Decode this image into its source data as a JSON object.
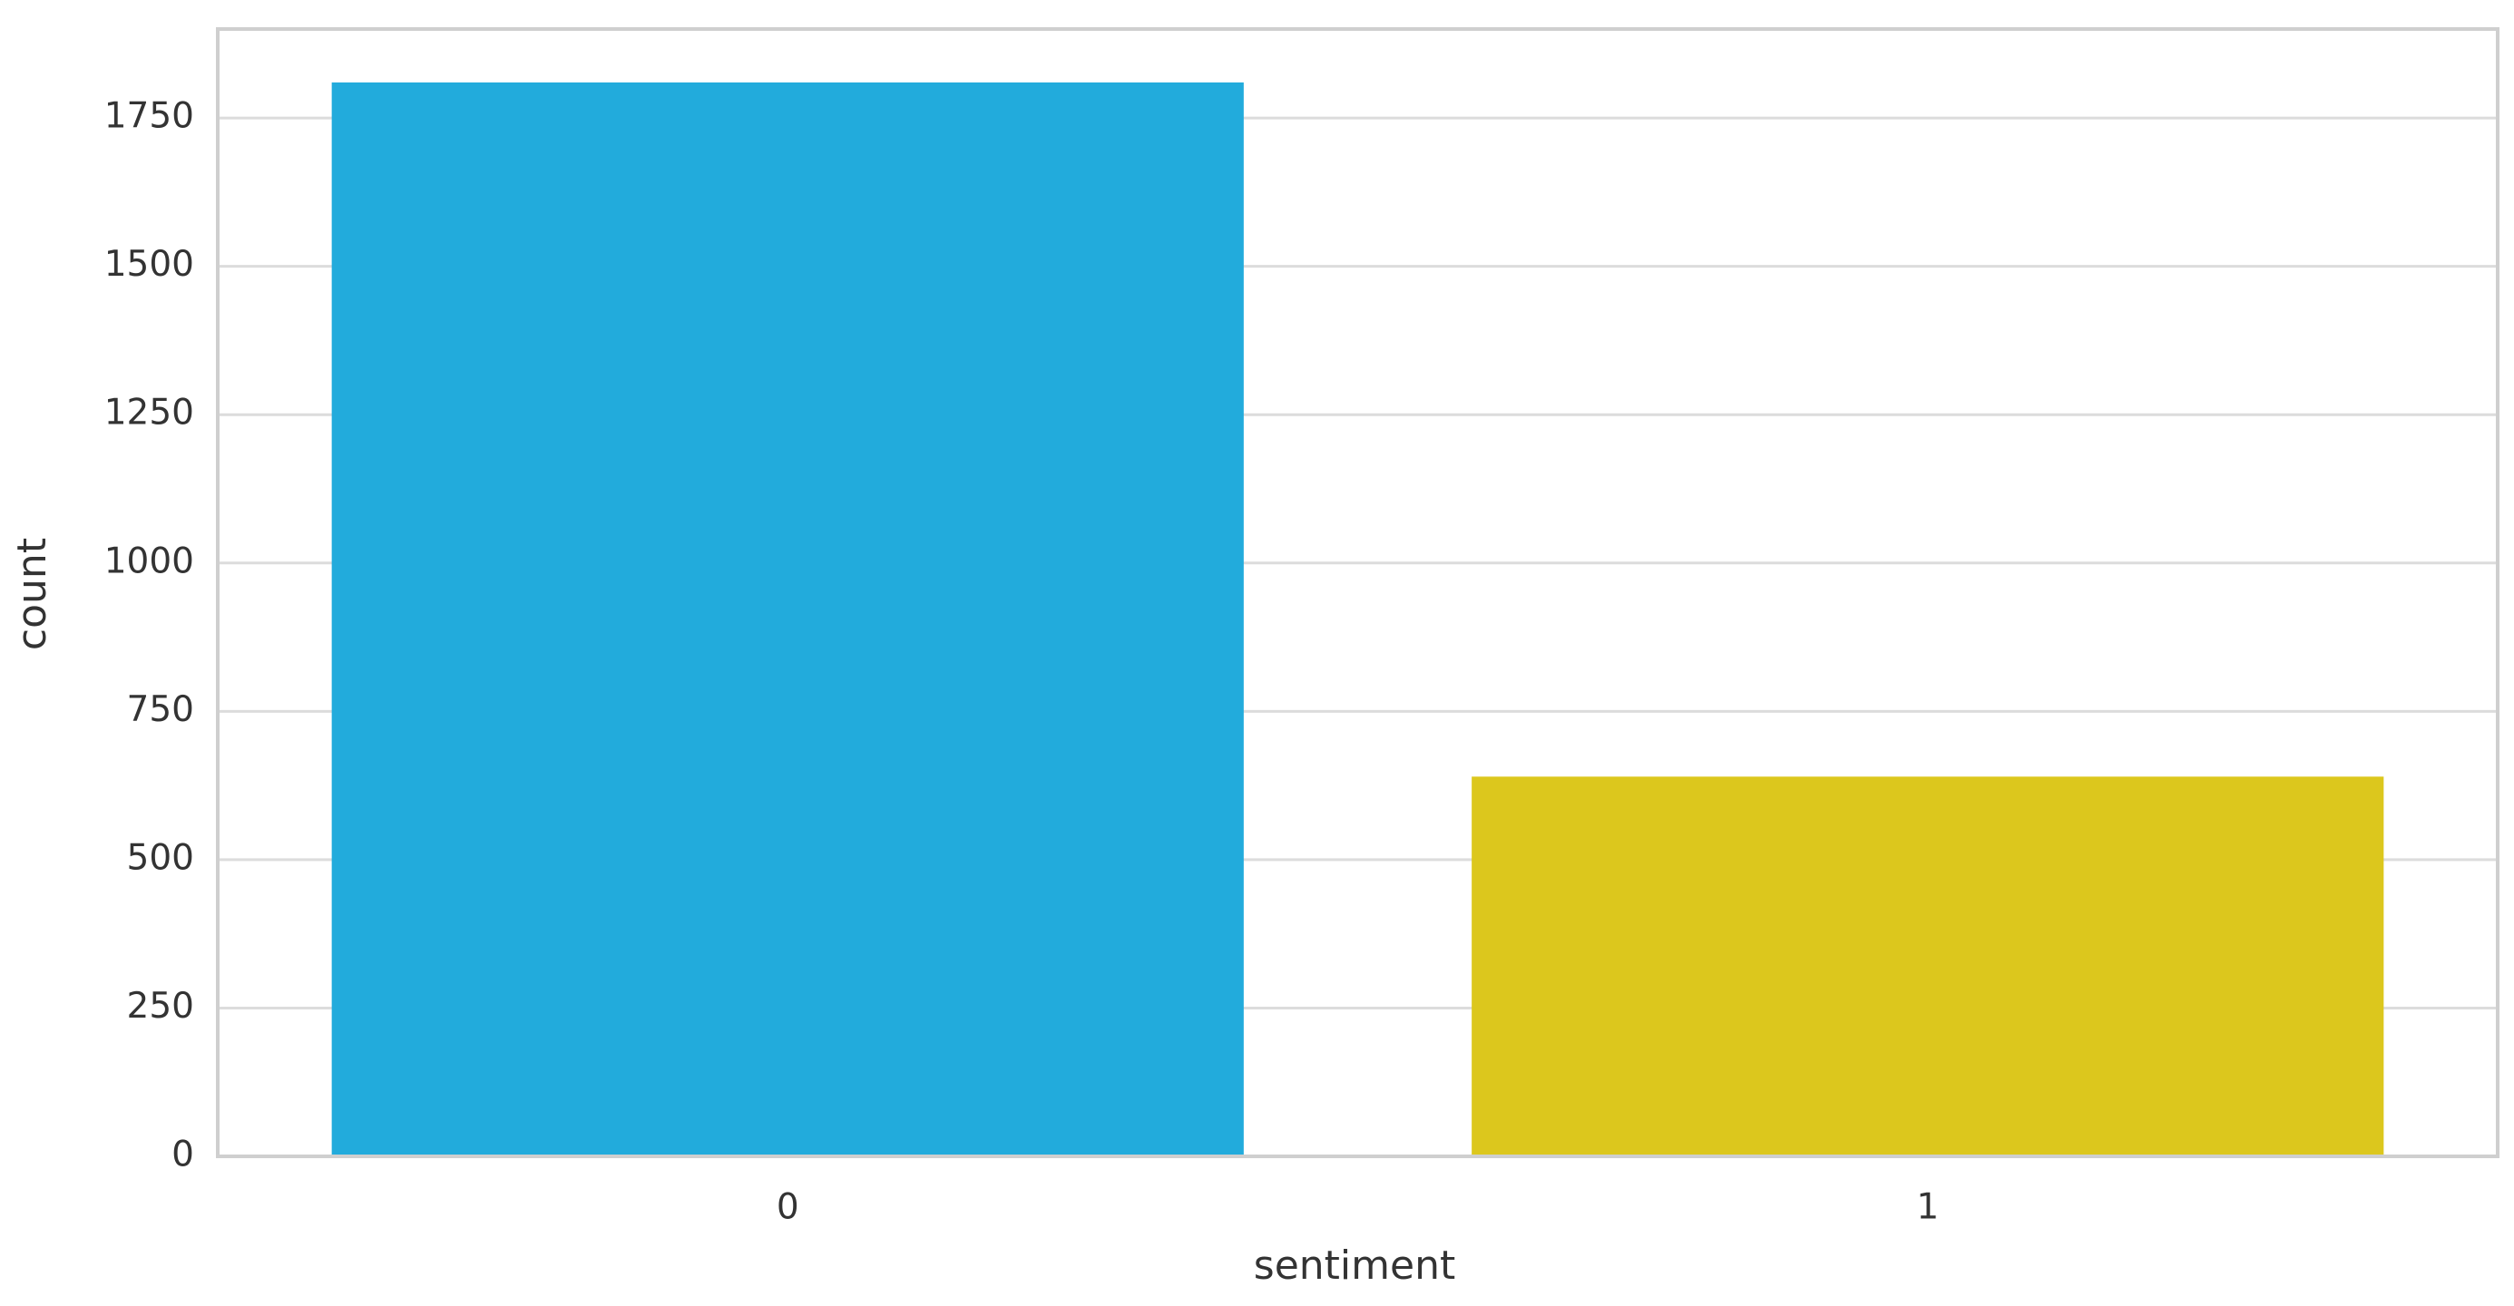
{
  "chart_data": {
    "type": "bar",
    "x_label": "sentiment",
    "y_label": "count",
    "categories": [
      "0",
      "1"
    ],
    "values": [
      1810,
      640
    ],
    "colors": [
      "#22abdc",
      "#dcc71d"
    ],
    "ylim": [
      0,
      1900
    ],
    "yticks": [
      0,
      250,
      500,
      750,
      1000,
      1250,
      1500,
      1750
    ],
    "grid": true
  }
}
